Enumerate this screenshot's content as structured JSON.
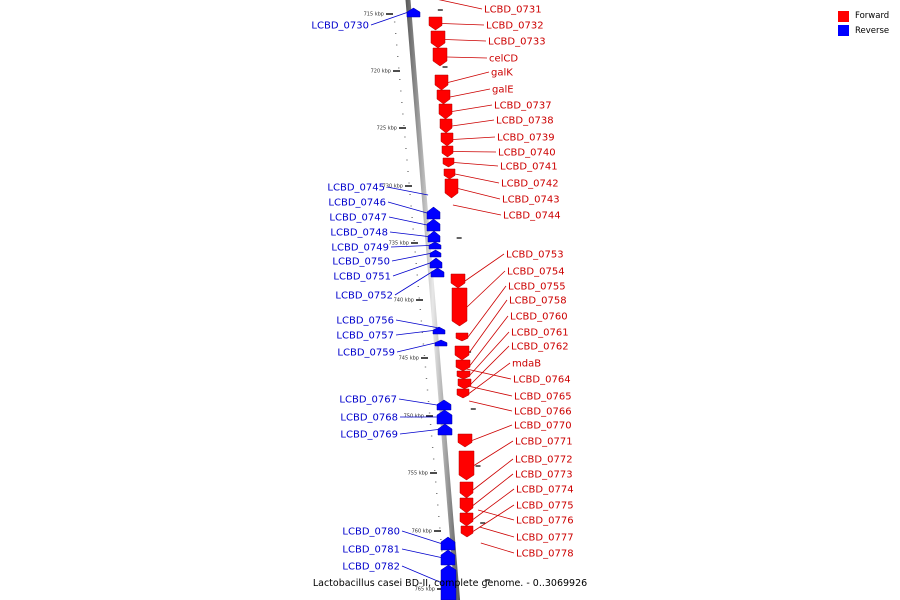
{
  "legend": [
    {
      "label": "Forward",
      "color": "#ff0000"
    },
    {
      "label": "Reverse",
      "color": "#0000ff"
    }
  ],
  "caption": "Lactobacillus casei BD-II, complete genome. - 0..3069926",
  "colors": {
    "forward": "#ff0000",
    "reverse": "#0000ff",
    "label_forward": "#cc0000",
    "label_reverse": "#0000cc"
  },
  "ruler": {
    "unit": "kbp",
    "ticks": [
      715,
      720,
      725,
      730,
      735,
      740,
      745,
      750,
      755,
      760,
      765
    ]
  },
  "genes": {
    "forward": [
      "LCBD_0731",
      "LCBD_0732",
      "LCBD_0733",
      "celCD",
      "galK",
      "galE",
      "LCBD_0737",
      "LCBD_0738",
      "LCBD_0739",
      "LCBD_0740",
      "LCBD_0741",
      "LCBD_0742",
      "LCBD_0743",
      "LCBD_0744",
      "LCBD_0753",
      "LCBD_0754",
      "LCBD_0755",
      "LCBD_0758",
      "LCBD_0760",
      "LCBD_0761",
      "LCBD_0762",
      "mdaB",
      "LCBD_0764",
      "LCBD_0765",
      "LCBD_0766",
      "LCBD_0770",
      "LCBD_0771",
      "LCBD_0772",
      "LCBD_0773",
      "LCBD_0774",
      "LCBD_0775",
      "LCBD_0776",
      "LCBD_0777",
      "LCBD_0778"
    ],
    "reverse": [
      "LCBD_0730",
      "LCBD_0745",
      "LCBD_0746",
      "LCBD_0747",
      "LCBD_0748",
      "LCBD_0749",
      "LCBD_0750",
      "LCBD_0751",
      "LCBD_0752",
      "LCBD_0756",
      "LCBD_0757",
      "LCBD_0759",
      "LCBD_0767",
      "LCBD_0768",
      "LCBD_0769",
      "LCBD_0780",
      "LCBD_0781",
      "LCBD_0782"
    ]
  }
}
